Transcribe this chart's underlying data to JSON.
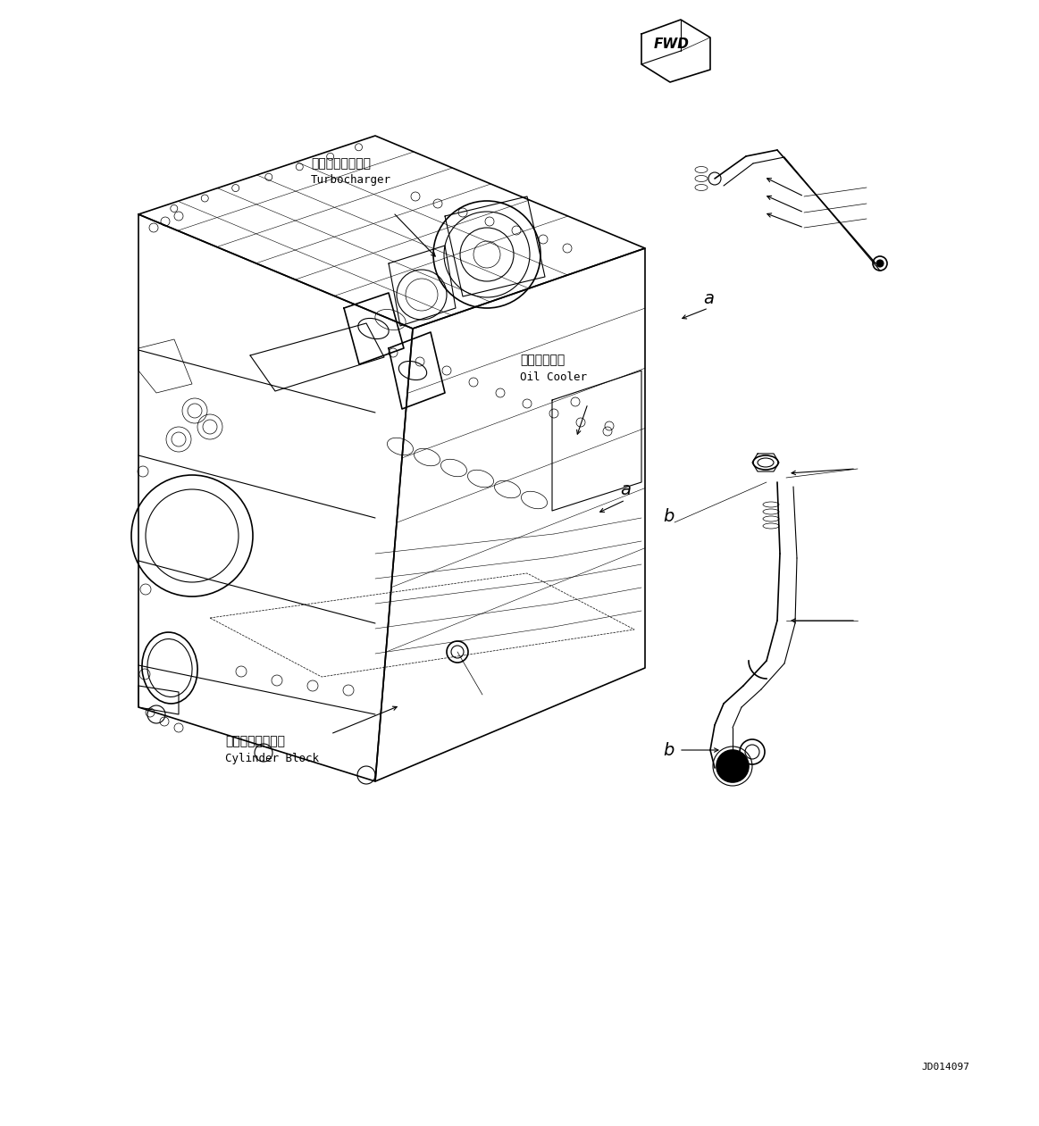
{
  "background_color": "#ffffff",
  "line_color": "#000000",
  "fig_width": 11.63,
  "fig_height": 12.61,
  "dpi": 100,
  "part_number": "JD014097",
  "labels": {
    "turbocharger_jp": "ターボチャージャ",
    "turbocharger_en": "Turbocharger",
    "oil_cooler_jp": "オイルクーラ",
    "oil_cooler_en": "Oil Cooler",
    "cylinder_block_jp": "シリンダブロック",
    "cylinder_block_en": "Cylinder Block"
  }
}
